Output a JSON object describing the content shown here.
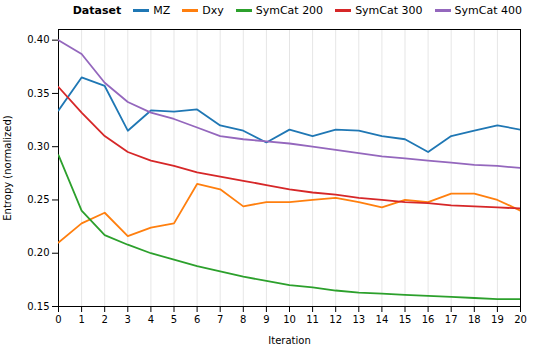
{
  "chart_data": {
    "type": "line",
    "xlabel": "Iteration",
    "ylabel": "Entropy (normalized)",
    "x": [
      0,
      1,
      2,
      3,
      4,
      5,
      6,
      7,
      8,
      9,
      10,
      11,
      12,
      13,
      14,
      15,
      16,
      17,
      18,
      19,
      20
    ],
    "xlim": [
      0,
      20
    ],
    "xticks": [
      0,
      1,
      2,
      3,
      4,
      5,
      6,
      7,
      8,
      9,
      10,
      11,
      12,
      13,
      14,
      15,
      16,
      17,
      18,
      19,
      20
    ],
    "ylim": [
      0.15,
      0.41
    ],
    "yticks": [
      0.15,
      {
        "value": 0.2,
        "label": "0.20"
      },
      0.25,
      {
        "value": 0.3,
        "label": "0.30"
      },
      0.35,
      {
        "value": 0.4,
        "label": "0.40"
      }
    ],
    "grid": "x",
    "legend": "upper right",
    "legend_title": "Dataset",
    "series": [
      {
        "name": "MZ",
        "color": "#1f77b4",
        "values": [
          0.334,
          0.365,
          0.357,
          0.315,
          0.334,
          0.333,
          0.335,
          0.32,
          0.315,
          0.304,
          0.316,
          0.31,
          0.316,
          0.315,
          0.31,
          0.307,
          0.295,
          0.31,
          0.315,
          0.32,
          0.316
        ]
      },
      {
        "name": "Dxy",
        "color": "#ff7f0e",
        "values": [
          0.21,
          0.228,
          0.238,
          0.216,
          0.224,
          0.228,
          0.265,
          0.26,
          0.244,
          0.248,
          0.248,
          0.25,
          0.252,
          0.248,
          0.243,
          0.25,
          0.248,
          0.256,
          0.256,
          0.25,
          0.24
        ]
      },
      {
        "name": "SymCat 200",
        "color": "#2ca02c",
        "values": [
          0.292,
          0.24,
          0.217,
          0.208,
          0.2,
          0.194,
          0.188,
          0.183,
          0.178,
          0.174,
          0.17,
          0.168,
          0.165,
          0.163,
          0.162,
          0.161,
          0.16,
          0.159,
          0.158,
          0.157,
          0.157
        ]
      },
      {
        "name": "SymCat 300",
        "color": "#d62728",
        "values": [
          0.356,
          0.332,
          0.31,
          0.295,
          0.287,
          0.282,
          0.276,
          0.272,
          0.268,
          0.264,
          0.26,
          0.257,
          0.255,
          0.252,
          0.25,
          0.248,
          0.247,
          0.245,
          0.244,
          0.243,
          0.242
        ]
      },
      {
        "name": "SymCat 400",
        "color": "#9467bd",
        "values": [
          0.4,
          0.387,
          0.36,
          0.342,
          0.332,
          0.326,
          0.318,
          0.31,
          0.307,
          0.305,
          0.303,
          0.3,
          0.297,
          0.294,
          0.291,
          0.289,
          0.287,
          0.285,
          0.283,
          0.282,
          0.28
        ]
      }
    ]
  }
}
